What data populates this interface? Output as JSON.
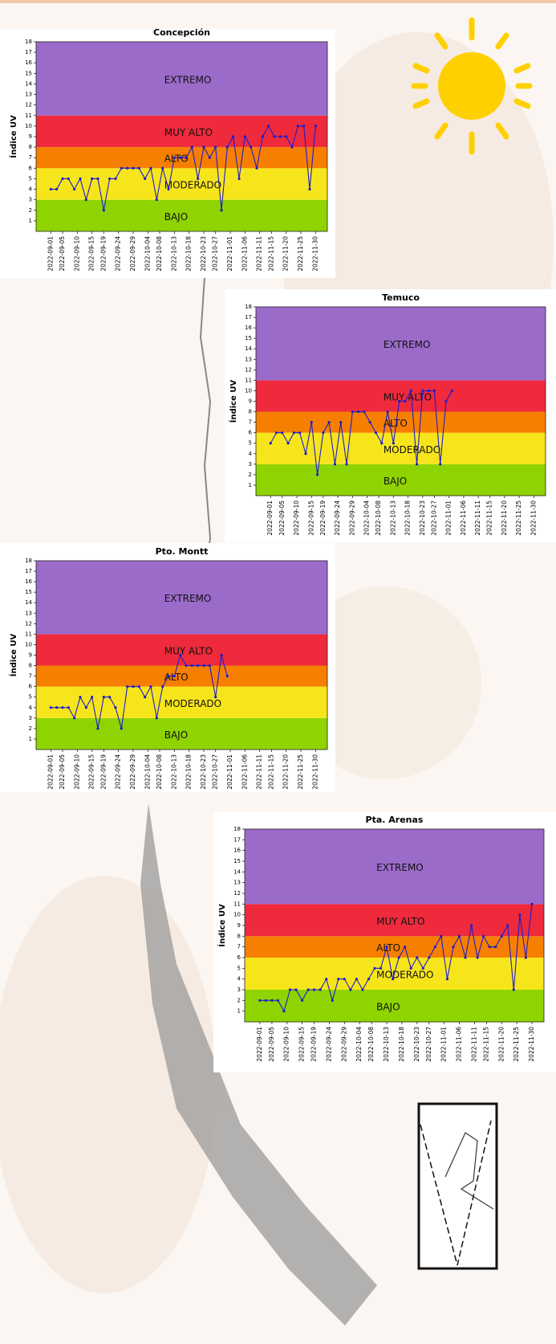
{
  "chart_data": [
    {
      "type": "line",
      "title": "Concepción",
      "ylabel": "Índice UV",
      "color": "#1c1ccf",
      "x": [
        "2022-09-01",
        "2022-09-03",
        "2022-09-05",
        "2022-09-07",
        "2022-09-09",
        "2022-09-11",
        "2022-09-13",
        "2022-09-15",
        "2022-09-17",
        "2022-09-19",
        "2022-09-21",
        "2022-09-23",
        "2022-09-25",
        "2022-09-27",
        "2022-09-29",
        "2022-10-01",
        "2022-10-03",
        "2022-10-05",
        "2022-10-07",
        "2022-10-09",
        "2022-10-11",
        "2022-10-13",
        "2022-10-15",
        "2022-10-17",
        "2022-10-19",
        "2022-10-21",
        "2022-10-23",
        "2022-10-25",
        "2022-10-27",
        "2022-10-29",
        "2022-10-31",
        "2022-11-02",
        "2022-11-04",
        "2022-11-06",
        "2022-11-08",
        "2022-11-10",
        "2022-11-12",
        "2022-11-14",
        "2022-11-16",
        "2022-11-18",
        "2022-11-20",
        "2022-11-22",
        "2022-11-24",
        "2022-11-26",
        "2022-11-28",
        "2022-11-30"
      ],
      "values": [
        4,
        4,
        5,
        5,
        4,
        5,
        3,
        5,
        5,
        2,
        5,
        5,
        6,
        6,
        6,
        6,
        5,
        6,
        3,
        6,
        4,
        7,
        7,
        7,
        8,
        5,
        8,
        7,
        8,
        2,
        8,
        9,
        5,
        9,
        8,
        6,
        9,
        10,
        9,
        9,
        9,
        8,
        10,
        10,
        4,
        10
      ],
      "xlim": [
        "2022-08-27",
        "2022-12-04"
      ],
      "ylim": [
        0,
        18
      ],
      "yticks": [
        1,
        2,
        3,
        4,
        5,
        6,
        7,
        8,
        9,
        10,
        11,
        12,
        13,
        14,
        15,
        16,
        17,
        18
      ],
      "xticks": [
        "2022-09-01",
        "2022-09-05",
        "2022-09-10",
        "2022-09-15",
        "2022-09-19",
        "2022-09-24",
        "2022-09-29",
        "2022-10-04",
        "2022-10-08",
        "2022-10-13",
        "2022-10-18",
        "2022-10-23",
        "2022-10-27",
        "2022-11-01",
        "2022-11-06",
        "2022-11-11",
        "2022-11-15",
        "2022-11-20",
        "2022-11-25",
        "2022-11-30"
      ],
      "bands": [
        {
          "label": "BAJO",
          "from": 0,
          "to": 3,
          "color": "#8fd400"
        },
        {
          "label": "MODERADO",
          "from": 3,
          "to": 6,
          "color": "#f7e51c"
        },
        {
          "label": "ALTO",
          "from": 6,
          "to": 8,
          "color": "#f77f00"
        },
        {
          "label": "MUY ALTO",
          "from": 8,
          "to": 11,
          "color": "#ee2a3c"
        },
        {
          "label": "EXTREMO",
          "from": 11,
          "to": 18,
          "color": "#9b6bc9"
        }
      ]
    },
    {
      "type": "line",
      "title": "Temuco",
      "ylabel": "Índice UV",
      "color": "#1c1ccf",
      "x": [
        "2022-09-01",
        "2022-09-03",
        "2022-09-05",
        "2022-09-07",
        "2022-09-09",
        "2022-09-11",
        "2022-09-13",
        "2022-09-15",
        "2022-09-17",
        "2022-09-19",
        "2022-09-21",
        "2022-09-23",
        "2022-09-25",
        "2022-09-27",
        "2022-09-29",
        "2022-10-01",
        "2022-10-03",
        "2022-10-05",
        "2022-10-07",
        "2022-10-09",
        "2022-10-11",
        "2022-10-13",
        "2022-10-15",
        "2022-10-17",
        "2022-10-19",
        "2022-10-21",
        "2022-10-23",
        "2022-10-25",
        "2022-10-27",
        "2022-10-29",
        "2022-10-31",
        "2022-11-02"
      ],
      "values": [
        5,
        6,
        6,
        5,
        6,
        6,
        4,
        7,
        2,
        6,
        7,
        3,
        7,
        3,
        8,
        8,
        8,
        7,
        6,
        5,
        8,
        5,
        9,
        9,
        10,
        3,
        10,
        10,
        10,
        3,
        9,
        10
      ],
      "xlim": [
        "2022-08-27",
        "2022-12-04"
      ],
      "ylim": [
        0,
        18
      ],
      "yticks": [
        1,
        2,
        3,
        4,
        5,
        6,
        7,
        8,
        9,
        10,
        11,
        12,
        13,
        14,
        15,
        16,
        17,
        18
      ],
      "xticks": [
        "2022-09-01",
        "2022-09-05",
        "2022-09-10",
        "2022-09-15",
        "2022-09-19",
        "2022-09-24",
        "2022-09-29",
        "2022-10-04",
        "2022-10-08",
        "2022-10-13",
        "2022-10-18",
        "2022-10-23",
        "2022-10-27",
        "2022-11-01",
        "2022-11-06",
        "2022-11-11",
        "2022-11-15",
        "2022-11-20",
        "2022-11-25",
        "2022-11-30"
      ],
      "bands": [
        {
          "label": "BAJO",
          "from": 0,
          "to": 3,
          "color": "#8fd400"
        },
        {
          "label": "MODERADO",
          "from": 3,
          "to": 6,
          "color": "#f7e51c"
        },
        {
          "label": "ALTO",
          "from": 6,
          "to": 8,
          "color": "#f77f00"
        },
        {
          "label": "MUY ALTO",
          "from": 8,
          "to": 11,
          "color": "#ee2a3c"
        },
        {
          "label": "EXTREMO",
          "from": 11,
          "to": 18,
          "color": "#9b6bc9"
        }
      ]
    },
    {
      "type": "line",
      "title": "Pto. Montt",
      "ylabel": "Índice UV",
      "color": "#1c1ccf",
      "x": [
        "2022-09-01",
        "2022-09-03",
        "2022-09-05",
        "2022-09-07",
        "2022-09-09",
        "2022-09-11",
        "2022-09-13",
        "2022-09-15",
        "2022-09-17",
        "2022-09-19",
        "2022-09-21",
        "2022-09-23",
        "2022-09-25",
        "2022-09-27",
        "2022-09-29",
        "2022-10-01",
        "2022-10-03",
        "2022-10-05",
        "2022-10-07",
        "2022-10-09",
        "2022-10-11",
        "2022-10-13",
        "2022-10-15",
        "2022-10-17",
        "2022-10-19",
        "2022-10-21",
        "2022-10-23",
        "2022-10-25",
        "2022-10-27",
        "2022-10-29",
        "2022-10-31"
      ],
      "values": [
        4,
        4,
        4,
        4,
        3,
        5,
        4,
        5,
        2,
        5,
        5,
        4,
        2,
        6,
        6,
        6,
        5,
        6,
        3,
        6,
        7,
        7,
        9,
        8,
        8,
        8,
        8,
        8,
        5,
        9,
        7
      ],
      "xlim": [
        "2022-08-27",
        "2022-12-04"
      ],
      "ylim": [
        0,
        18
      ],
      "yticks": [
        1,
        2,
        3,
        4,
        5,
        6,
        7,
        8,
        9,
        10,
        11,
        12,
        13,
        14,
        15,
        16,
        17,
        18
      ],
      "xticks": [
        "2022-09-01",
        "2022-09-05",
        "2022-09-10",
        "2022-09-15",
        "2022-09-19",
        "2022-09-24",
        "2022-09-29",
        "2022-10-04",
        "2022-10-08",
        "2022-10-13",
        "2022-10-18",
        "2022-10-23",
        "2022-10-27",
        "2022-11-01",
        "2022-11-06",
        "2022-11-11",
        "2022-11-15",
        "2022-11-20",
        "2022-11-25",
        "2022-11-30"
      ],
      "bands": [
        {
          "label": "BAJO",
          "from": 0,
          "to": 3,
          "color": "#8fd400"
        },
        {
          "label": "MODERADO",
          "from": 3,
          "to": 6,
          "color": "#f7e51c"
        },
        {
          "label": "ALTO",
          "from": 6,
          "to": 8,
          "color": "#f77f00"
        },
        {
          "label": "MUY ALTO",
          "from": 8,
          "to": 11,
          "color": "#ee2a3c"
        },
        {
          "label": "EXTREMO",
          "from": 11,
          "to": 18,
          "color": "#9b6bc9"
        }
      ]
    },
    {
      "type": "line",
      "title": "Pta. Arenas",
      "ylabel": "Índice UV",
      "color": "#1c1ccf",
      "x": [
        "2022-09-01",
        "2022-09-03",
        "2022-09-05",
        "2022-09-07",
        "2022-09-09",
        "2022-09-11",
        "2022-09-13",
        "2022-09-15",
        "2022-09-17",
        "2022-09-19",
        "2022-09-21",
        "2022-09-23",
        "2022-09-25",
        "2022-09-27",
        "2022-09-29",
        "2022-10-01",
        "2022-10-03",
        "2022-10-05",
        "2022-10-07",
        "2022-10-09",
        "2022-10-11",
        "2022-10-13",
        "2022-10-15",
        "2022-10-17",
        "2022-10-19",
        "2022-10-21",
        "2022-10-23",
        "2022-10-25",
        "2022-10-27",
        "2022-10-29",
        "2022-10-31",
        "2022-11-02",
        "2022-11-04",
        "2022-11-06",
        "2022-11-08",
        "2022-11-10",
        "2022-11-12",
        "2022-11-14",
        "2022-11-16",
        "2022-11-18",
        "2022-11-20",
        "2022-11-22",
        "2022-11-24",
        "2022-11-26",
        "2022-11-28",
        "2022-11-30"
      ],
      "values": [
        2,
        2,
        2,
        2,
        1,
        3,
        3,
        2,
        3,
        3,
        3,
        4,
        2,
        4,
        4,
        3,
        4,
        3,
        4,
        5,
        5,
        7,
        4,
        6,
        7,
        5,
        6,
        5,
        6,
        7,
        8,
        4,
        7,
        8,
        6,
        9,
        6,
        8,
        7,
        7,
        8,
        9,
        3,
        10,
        6,
        11
      ],
      "xlim": [
        "2022-08-27",
        "2022-12-04"
      ],
      "ylim": [
        0,
        18
      ],
      "yticks": [
        1,
        2,
        3,
        4,
        5,
        6,
        7,
        8,
        9,
        10,
        11,
        12,
        13,
        14,
        15,
        16,
        17,
        18
      ],
      "xticks": [
        "2022-09-01",
        "2022-09-05",
        "2022-09-10",
        "2022-09-15",
        "2022-09-19",
        "2022-09-24",
        "2022-09-29",
        "2022-10-04",
        "2022-10-08",
        "2022-10-13",
        "2022-10-18",
        "2022-10-23",
        "2022-10-27",
        "2022-11-01",
        "2022-11-06",
        "2022-11-11",
        "2022-11-15",
        "2022-11-20",
        "2022-11-25",
        "2022-11-30"
      ],
      "bands": [
        {
          "label": "BAJO",
          "from": 0,
          "to": 3,
          "color": "#8fd400"
        },
        {
          "label": "MODERADO",
          "from": 3,
          "to": 6,
          "color": "#f7e51c"
        },
        {
          "label": "ALTO",
          "from": 6,
          "to": 8,
          "color": "#f77f00"
        },
        {
          "label": "MUY ALTO",
          "from": 8,
          "to": 11,
          "color": "#ee2a3c"
        },
        {
          "label": "EXTREMO",
          "from": 11,
          "to": 18,
          "color": "#9b6bc9"
        }
      ]
    }
  ]
}
